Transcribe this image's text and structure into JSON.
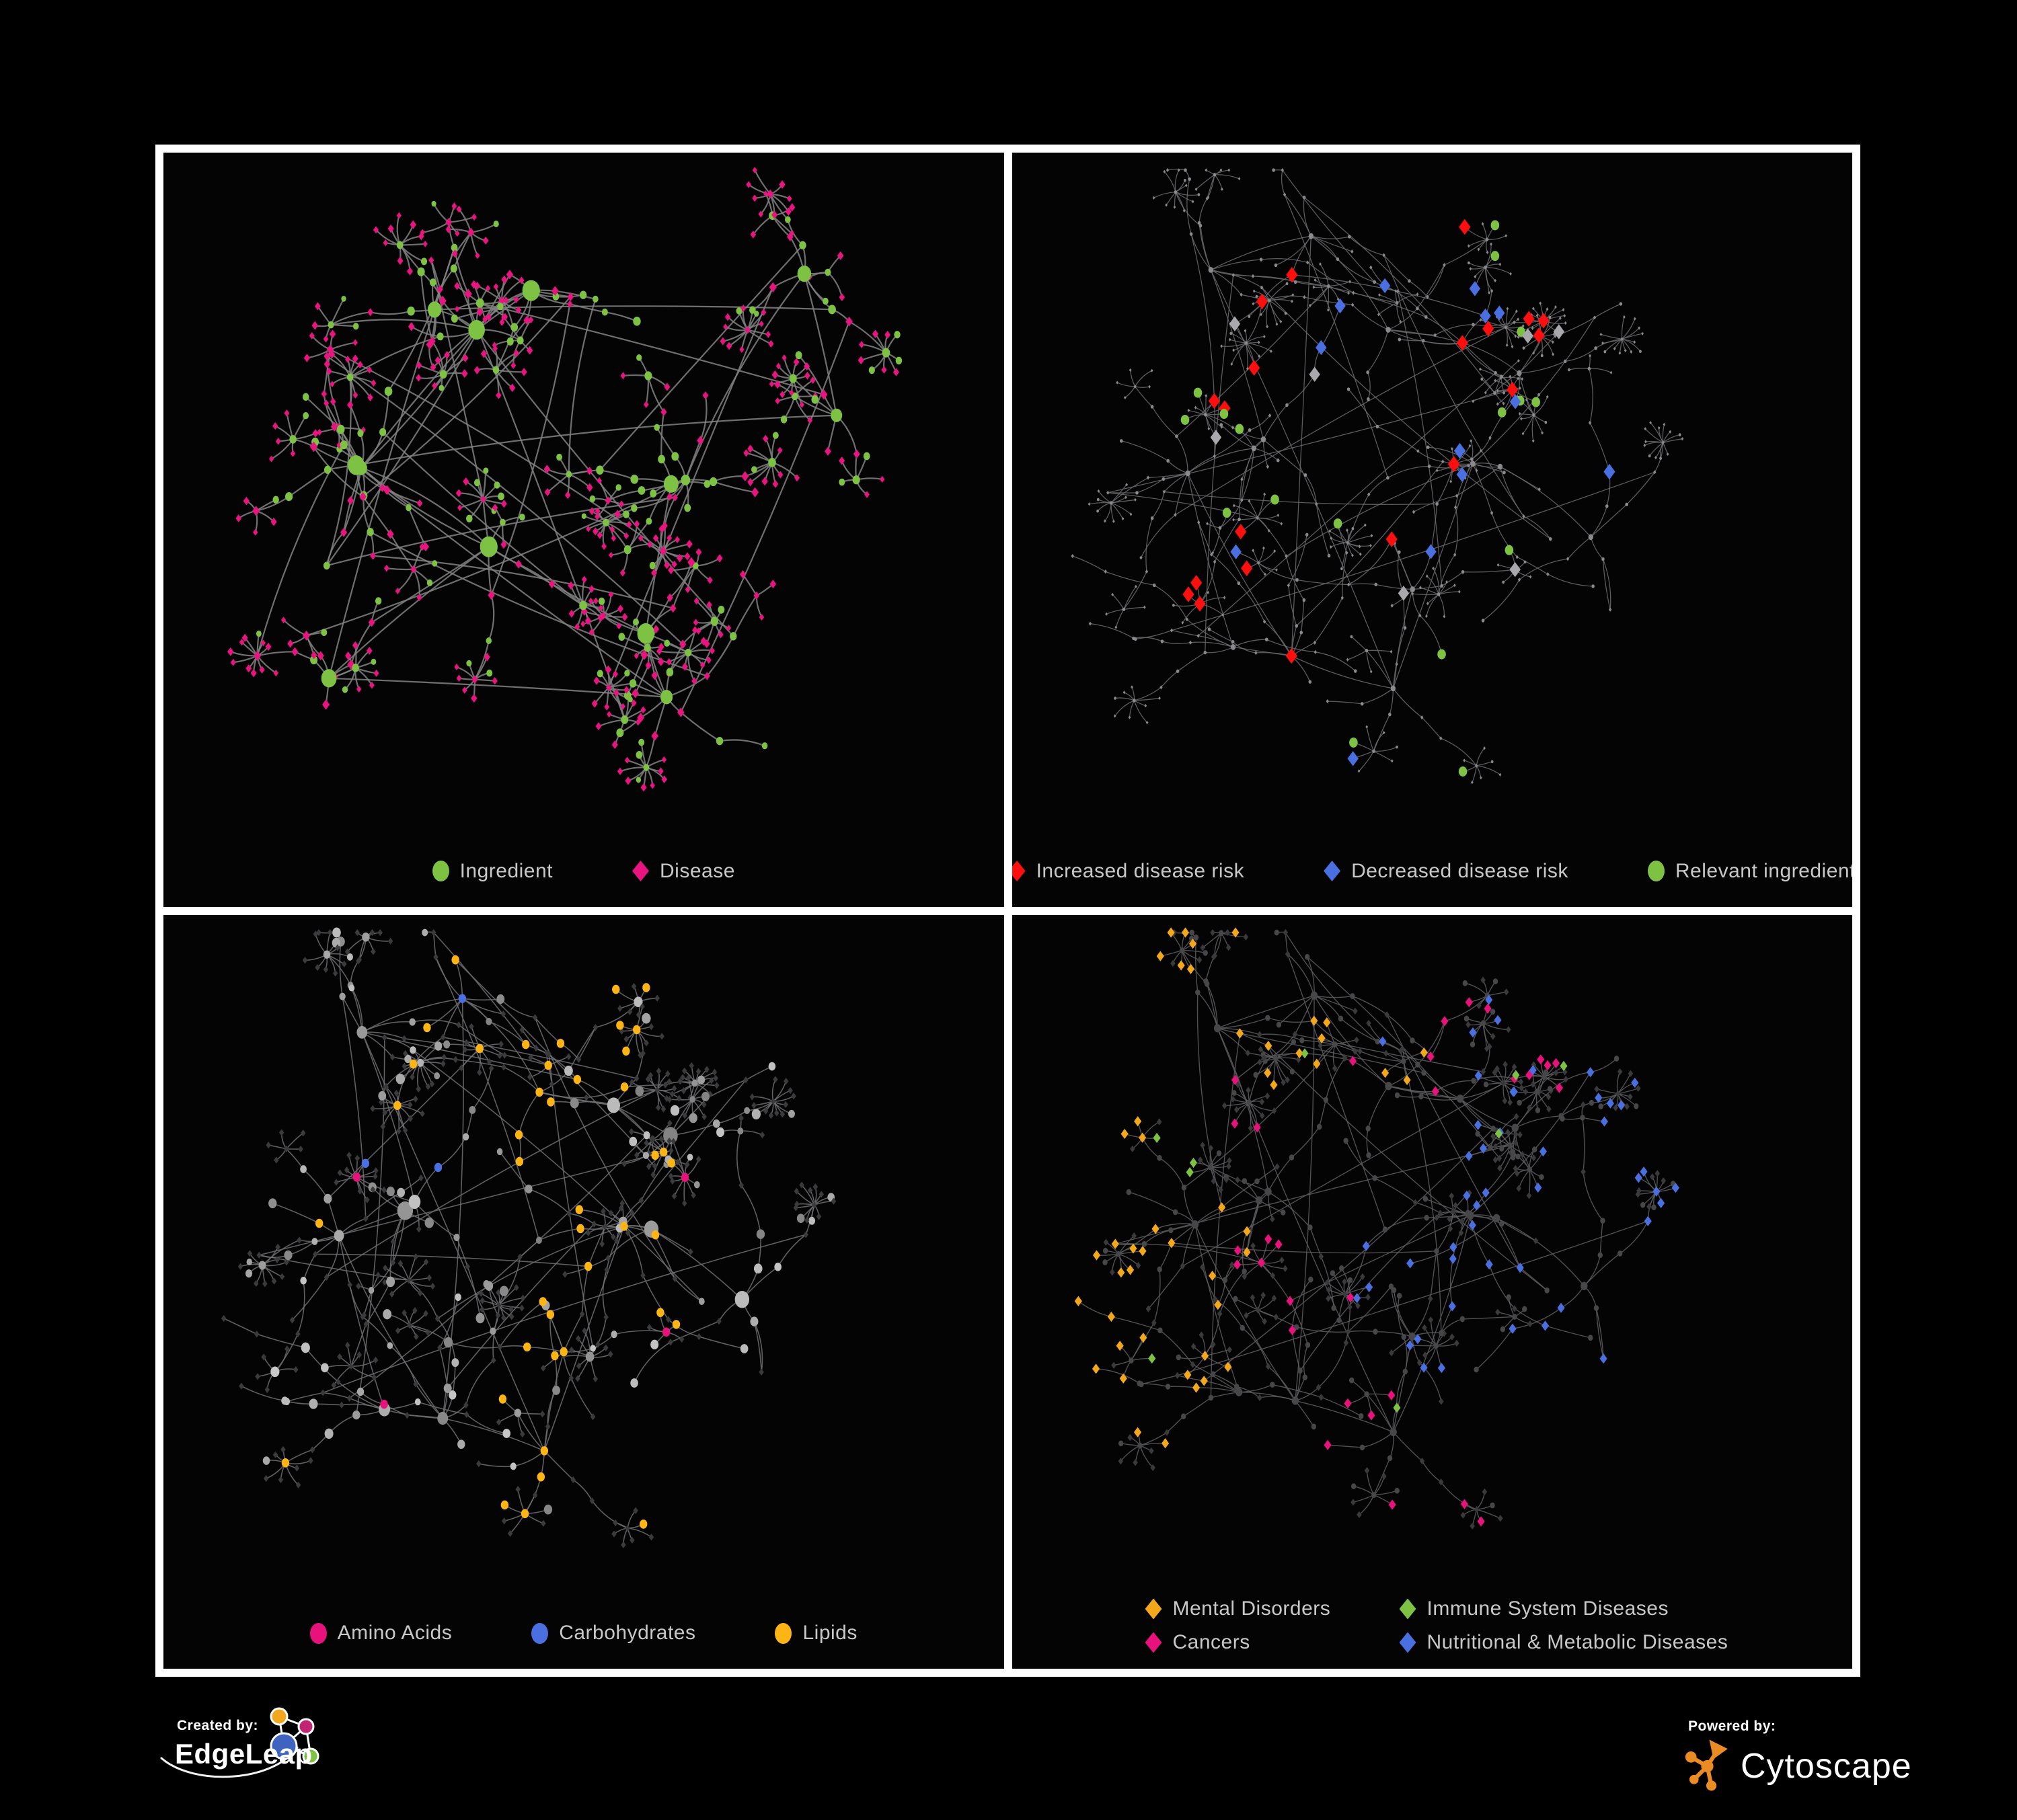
{
  "figure": {
    "type": "network-figure",
    "panel_count": 4,
    "background": "#000000",
    "frame_color": "#ffffff",
    "panel_background": "#040404",
    "legend_text_color": "#c8c8c8"
  },
  "panels": [
    {
      "name": "ingredient-disease",
      "legend": {
        "layout": "row",
        "items": [
          {
            "label": "Ingredient",
            "shape": "ellipse",
            "color": "#7dc242"
          },
          {
            "label": "Disease",
            "shape": "diamond",
            "color": "#e81480"
          }
        ]
      },
      "network": {
        "kind": "two-tone",
        "seed": 5,
        "style_seed": 101,
        "hub_count": 13,
        "branch_min": 4,
        "branch_max": 8,
        "max_steps": 3,
        "step_min": 30,
        "step_max": 72,
        "fan_prob": 0.5,
        "fan_max": 12,
        "fan_r_min": 20,
        "fan_r_max": 44,
        "cross_links": 30,
        "edge_color": "#828282",
        "edge_width": 2.2,
        "colors": {
          "ingredient": "#7dc242",
          "disease": "#e81480"
        }
      }
    },
    {
      "name": "disease-risk",
      "legend": {
        "layout": "row",
        "items": [
          {
            "label": "Increased disease risk",
            "shape": "diamond",
            "color": "#fb0f0f"
          },
          {
            "label": "Decreased disease risk",
            "shape": "diamond",
            "color": "#4a6fe1"
          },
          {
            "label": "Relevant ingredient",
            "shape": "ellipse",
            "color": "#7dc242"
          }
        ]
      },
      "network": {
        "kind": "risk",
        "seed": 13,
        "style_seed": 202,
        "hub_count": 15,
        "branch_min": 3,
        "branch_max": 7,
        "max_steps": 4,
        "step_min": 34,
        "step_max": 82,
        "fan_prob": 0.46,
        "fan_max": 13,
        "fan_r_min": 18,
        "fan_r_max": 40,
        "cross_links": 24,
        "edge_color": "#6b6b6e",
        "edge_width": 1.3,
        "colors": {
          "base": "#8a8a8e",
          "increased": "#fb0f0f",
          "decreased": "#4a6fe1",
          "neutral": "#a9a9ad",
          "ingredient": "#7dc242"
        }
      }
    },
    {
      "name": "nutrient-class",
      "legend": {
        "layout": "row",
        "items": [
          {
            "label": "Amino Acids",
            "shape": "ellipse",
            "color": "#e8127c"
          },
          {
            "label": "Carbohydrates",
            "shape": "ellipse",
            "color": "#4a6fe1"
          },
          {
            "label": "Lipids",
            "shape": "ellipse",
            "color": "#fdb515"
          }
        ]
      },
      "network": {
        "kind": "nutrient",
        "seed": 13,
        "style_seed": 303,
        "hub_count": 15,
        "branch_min": 3,
        "branch_max": 7,
        "max_steps": 4,
        "step_min": 34,
        "step_max": 82,
        "fan_prob": 0.46,
        "fan_max": 13,
        "fan_r_min": 18,
        "fan_r_max": 40,
        "cross_links": 24,
        "edge_color": "#707073",
        "edge_width": 1.6,
        "colors": {
          "amino_acids": "#e8127c",
          "carbohydrates": "#4a6fe1",
          "lipids": "#fdb515",
          "other_ingredient": "#9a9a9e",
          "dim_disease": "#3b3b3e"
        }
      }
    },
    {
      "name": "disease-category",
      "legend": {
        "layout": "grid-2col",
        "items": [
          {
            "label": "Mental Disorders",
            "shape": "diamond",
            "color": "#f3a71b"
          },
          {
            "label": "Immune System Diseases",
            "shape": "diamond",
            "color": "#7dc242"
          },
          {
            "label": "Cancers",
            "shape": "diamond",
            "color": "#e8127c"
          },
          {
            "label": "Nutritional & Metabolic Diseases",
            "shape": "diamond",
            "color": "#4a6fe1"
          }
        ]
      },
      "network": {
        "kind": "disease-class",
        "seed": 13,
        "style_seed": 404,
        "hub_count": 15,
        "branch_min": 3,
        "branch_max": 7,
        "max_steps": 4,
        "step_min": 34,
        "step_max": 82,
        "fan_prob": 0.46,
        "fan_max": 13,
        "fan_r_min": 18,
        "fan_r_max": 40,
        "cross_links": 24,
        "edge_color": "#5e5e62",
        "edge_width": 1.4,
        "colors": {
          "mental": "#f3a71b",
          "immune": "#7dc242",
          "cancers": "#e8127c",
          "nutritional": "#4a6fe1",
          "dim_disease": "#3a3a3d",
          "dim_ingredient": "#474749"
        }
      }
    }
  ],
  "footer": {
    "created_by": {
      "label": "Created by:",
      "brand": "EdgeLeap",
      "logo_colors": {
        "orange": "#f2a71e",
        "magenta": "#c22573",
        "blue": "#3e64c0",
        "green": "#7dc242"
      }
    },
    "powered_by": {
      "label": "Powered by:",
      "brand": "Cytoscape",
      "logo_color": "#ea8b23"
    }
  }
}
